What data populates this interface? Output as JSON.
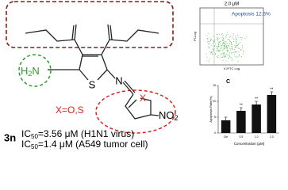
{
  "structure": {
    "atoms": {
      "S": "S",
      "N": "N",
      "X": "X",
      "amine_h": "H",
      "amine_sub": "2",
      "amine_n": "N",
      "nitro": "NO",
      "nitro_sub": "2"
    },
    "x_note": "X=O,S",
    "compound": "3n",
    "activities": [
      {
        "ic": "IC",
        "sub": "50",
        "text": "=3.56 μM (H1N1 virus)"
      },
      {
        "ic": "IC",
        "sub": "50",
        "text": "=1.4 μM (A549 tumor cell)"
      }
    ]
  },
  "flow_plot": {
    "title": "2.0 μM",
    "annotation": "Apoptosis 12.6%",
    "x_label": "V-FITC Log",
    "y_label": "PI-Log"
  },
  "chart_data": {
    "type": "bar",
    "panel": "C",
    "y_label": "Apoptosis Rate(%)",
    "x_label": "Concentration (μM)",
    "categories": [
      "Ctrl",
      "0.5",
      "1.0",
      "2.0"
    ],
    "values": [
      4,
      7,
      9,
      12
    ],
    "errors": [
      1,
      1,
      1,
      1
    ],
    "value_labels": [
      null,
      "**",
      "**",
      "**"
    ],
    "color": "#111111",
    "ylim": [
      0,
      15
    ],
    "yticks": [
      0,
      5,
      10,
      15
    ]
  }
}
